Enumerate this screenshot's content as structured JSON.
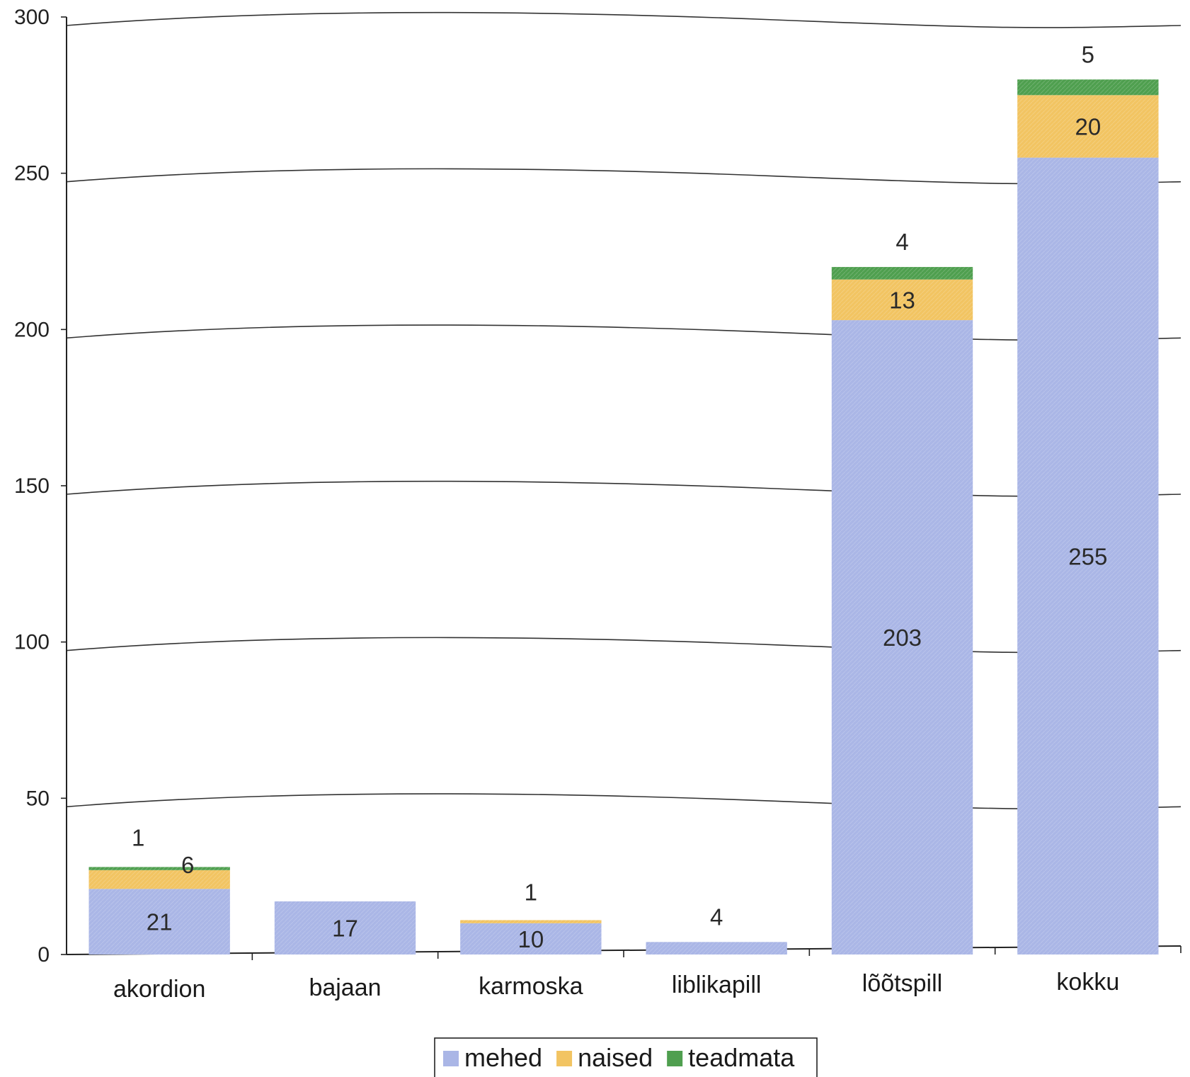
{
  "chart_data": {
    "type": "bar",
    "stacked": true,
    "categories": [
      "akordion",
      "bajaan",
      "karmoska",
      "liblikapill",
      "lõõtspill",
      "kokku"
    ],
    "series": [
      {
        "name": "mehed",
        "color": "#aab6e6",
        "values": [
          21,
          17,
          10,
          4,
          203,
          255
        ]
      },
      {
        "name": "naised",
        "color": "#f2c462",
        "values": [
          6,
          0,
          1,
          0,
          13,
          20
        ]
      },
      {
        "name": "teadmata",
        "color": "#4f9f4f",
        "values": [
          1,
          0,
          0,
          0,
          4,
          5
        ]
      }
    ],
    "data_labels": [
      [
        "21",
        "6",
        "1"
      ],
      [
        "17",
        "",
        ""
      ],
      [
        "10",
        "1",
        ""
      ],
      [
        "4",
        "",
        ""
      ],
      [
        "203",
        "13",
        "4"
      ],
      [
        "255",
        "20",
        "5"
      ]
    ],
    "y_ticks": [
      "0",
      "50",
      "100",
      "150",
      "200",
      "250",
      "300"
    ],
    "ylim": [
      0,
      300
    ],
    "grid": true,
    "legend_position": "bottom",
    "title": "",
    "xlabel": "",
    "ylabel": ""
  }
}
